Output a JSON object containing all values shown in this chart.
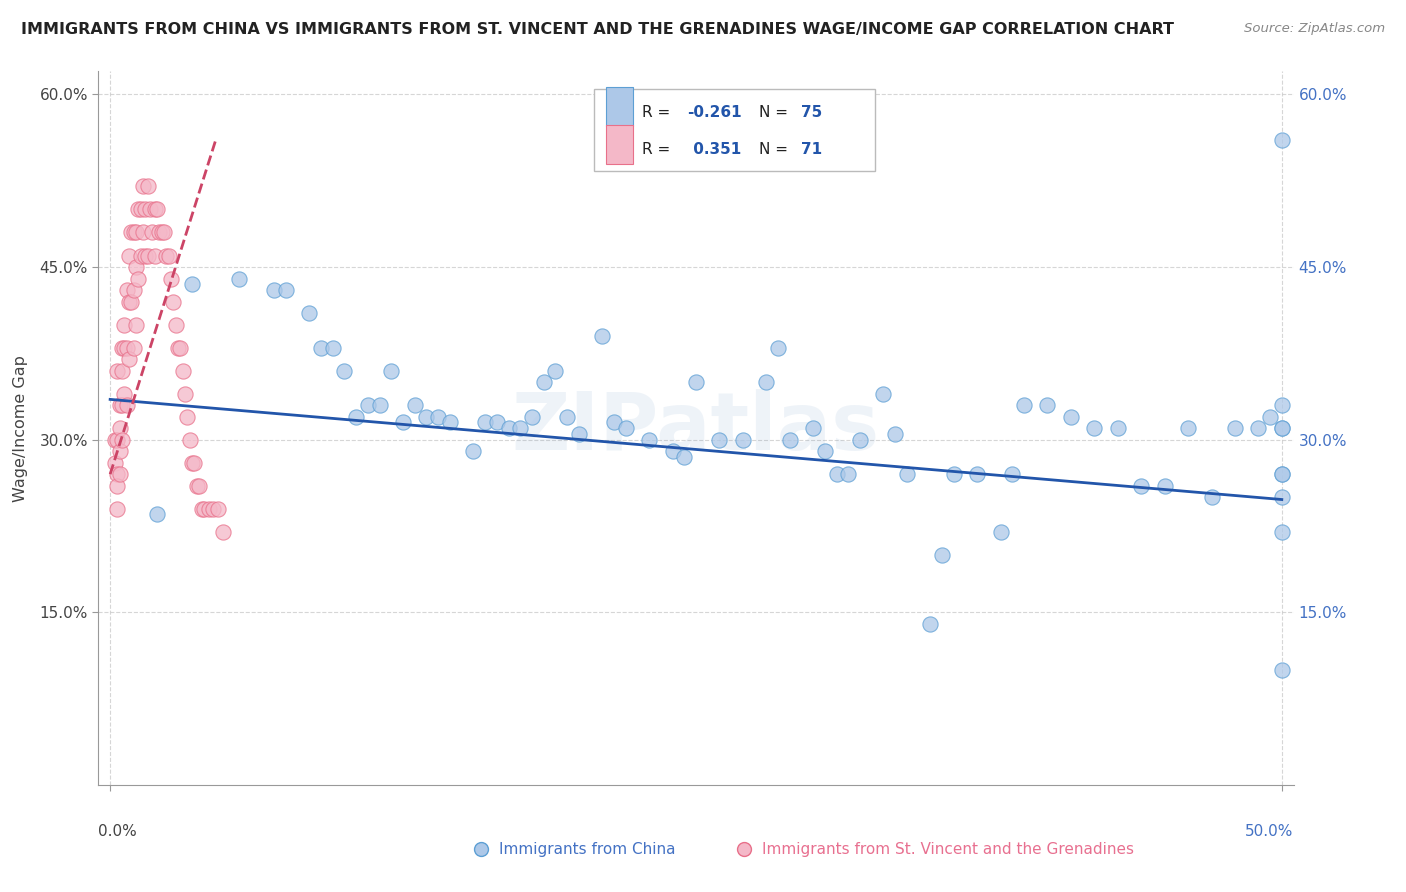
{
  "title": "IMMIGRANTS FROM CHINA VS IMMIGRANTS FROM ST. VINCENT AND THE GRENADINES WAGE/INCOME GAP CORRELATION CHART",
  "source": "Source: ZipAtlas.com",
  "ylabel": "Wage/Income Gap",
  "ylim": [
    0.0,
    0.62
  ],
  "xlim": [
    -0.005,
    0.505
  ],
  "ytick_vals": [
    0.15,
    0.3,
    0.45,
    0.6
  ],
  "ytick_labels": [
    "15.0%",
    "30.0%",
    "45.0%",
    "60.0%"
  ],
  "china_color": "#adc8e8",
  "china_edge": "#5d9fd4",
  "svg_color": "#f4b8c8",
  "svg_edge": "#e8708a",
  "china_line_color": "#2255aa",
  "svg_line_color": "#cc4466",
  "watermark": "ZIPatlas",
  "background_color": "#ffffff",
  "grid_color": "#cccccc",
  "china_line_x0": 0.0,
  "china_line_y0": 0.335,
  "china_line_x1": 0.5,
  "china_line_y1": 0.248,
  "svg_line_x0": 0.0,
  "svg_line_y0": 0.27,
  "svg_line_x1": 0.045,
  "svg_line_y1": 0.56,
  "china_x": [
    0.02,
    0.035,
    0.055,
    0.07,
    0.075,
    0.085,
    0.09,
    0.095,
    0.1,
    0.105,
    0.11,
    0.115,
    0.12,
    0.125,
    0.13,
    0.135,
    0.14,
    0.145,
    0.155,
    0.16,
    0.165,
    0.17,
    0.175,
    0.18,
    0.185,
    0.19,
    0.195,
    0.2,
    0.21,
    0.215,
    0.22,
    0.23,
    0.24,
    0.245,
    0.25,
    0.26,
    0.27,
    0.28,
    0.285,
    0.29,
    0.3,
    0.305,
    0.31,
    0.315,
    0.32,
    0.33,
    0.335,
    0.34,
    0.35,
    0.355,
    0.36,
    0.37,
    0.38,
    0.385,
    0.39,
    0.4,
    0.41,
    0.42,
    0.43,
    0.44,
    0.45,
    0.46,
    0.47,
    0.48,
    0.49,
    0.495,
    0.5,
    0.5,
    0.5,
    0.5,
    0.5,
    0.5,
    0.5,
    0.5,
    0.5
  ],
  "china_y": [
    0.235,
    0.435,
    0.44,
    0.43,
    0.43,
    0.41,
    0.38,
    0.38,
    0.36,
    0.32,
    0.33,
    0.33,
    0.36,
    0.315,
    0.33,
    0.32,
    0.32,
    0.315,
    0.29,
    0.315,
    0.315,
    0.31,
    0.31,
    0.32,
    0.35,
    0.36,
    0.32,
    0.305,
    0.39,
    0.315,
    0.31,
    0.3,
    0.29,
    0.285,
    0.35,
    0.3,
    0.3,
    0.35,
    0.38,
    0.3,
    0.31,
    0.29,
    0.27,
    0.27,
    0.3,
    0.34,
    0.305,
    0.27,
    0.14,
    0.2,
    0.27,
    0.27,
    0.22,
    0.27,
    0.33,
    0.33,
    0.32,
    0.31,
    0.31,
    0.26,
    0.26,
    0.31,
    0.25,
    0.31,
    0.31,
    0.32,
    0.56,
    0.33,
    0.31,
    0.27,
    0.22,
    0.25,
    0.31,
    0.1,
    0.27
  ],
  "svg_x": [
    0.002,
    0.002,
    0.003,
    0.003,
    0.003,
    0.003,
    0.003,
    0.004,
    0.004,
    0.004,
    0.004,
    0.005,
    0.005,
    0.005,
    0.005,
    0.006,
    0.006,
    0.006,
    0.007,
    0.007,
    0.007,
    0.008,
    0.008,
    0.008,
    0.009,
    0.009,
    0.01,
    0.01,
    0.01,
    0.011,
    0.011,
    0.011,
    0.012,
    0.012,
    0.013,
    0.013,
    0.014,
    0.014,
    0.015,
    0.015,
    0.016,
    0.016,
    0.017,
    0.018,
    0.019,
    0.019,
    0.02,
    0.021,
    0.022,
    0.023,
    0.024,
    0.025,
    0.026,
    0.027,
    0.028,
    0.029,
    0.03,
    0.031,
    0.032,
    0.033,
    0.034,
    0.035,
    0.036,
    0.037,
    0.038,
    0.039,
    0.04,
    0.042,
    0.044,
    0.046,
    0.048
  ],
  "svg_y": [
    0.3,
    0.28,
    0.36,
    0.3,
    0.27,
    0.26,
    0.24,
    0.33,
    0.31,
    0.29,
    0.27,
    0.38,
    0.36,
    0.33,
    0.3,
    0.4,
    0.38,
    0.34,
    0.43,
    0.38,
    0.33,
    0.46,
    0.42,
    0.37,
    0.48,
    0.42,
    0.48,
    0.43,
    0.38,
    0.48,
    0.45,
    0.4,
    0.5,
    0.44,
    0.5,
    0.46,
    0.52,
    0.48,
    0.5,
    0.46,
    0.52,
    0.46,
    0.5,
    0.48,
    0.5,
    0.46,
    0.5,
    0.48,
    0.48,
    0.48,
    0.46,
    0.46,
    0.44,
    0.42,
    0.4,
    0.38,
    0.38,
    0.36,
    0.34,
    0.32,
    0.3,
    0.28,
    0.28,
    0.26,
    0.26,
    0.24,
    0.24,
    0.24,
    0.24,
    0.24,
    0.22
  ]
}
